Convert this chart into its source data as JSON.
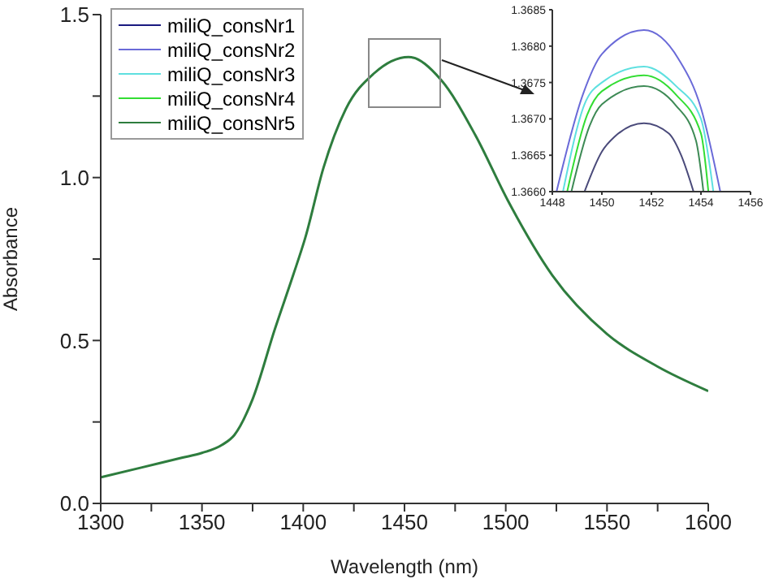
{
  "chart_data": [
    {
      "type": "line",
      "xlabel": "Wavelength (nm)",
      "ylabel": "Absorbance",
      "legend": "top left",
      "grid": false,
      "xlim": [
        1300,
        1600
      ],
      "xticks": [
        1300,
        {
          "value": 1325,
          "label": null
        },
        1350,
        {
          "value": 1375,
          "label": null
        },
        1400,
        {
          "value": 1425,
          "label": null
        },
        1450,
        {
          "value": 1475,
          "label": null
        },
        1500,
        {
          "value": 1525,
          "label": null
        },
        1550,
        {
          "value": 1575,
          "label": null
        },
        1600
      ],
      "ylim": [
        0,
        1.5
      ],
      "yticks": [
        {
          "value": 0,
          "label": "0.0"
        },
        {
          "value": 0.25,
          "label": null
        },
        {
          "value": 0.5,
          "label": "0.5"
        },
        {
          "value": 0.75,
          "label": null
        },
        {
          "value": 1,
          "label": "1.0"
        },
        {
          "value": 1.25,
          "label": null
        },
        {
          "value": 1.5,
          "label": "1.5"
        }
      ],
      "x": [
        1300,
        1320,
        1340,
        1350,
        1360,
        1366,
        1375,
        1386,
        1395,
        1401,
        1410,
        1421,
        1435,
        1452,
        1468,
        1485,
        1501,
        1523,
        1550,
        1575,
        1600
      ],
      "series": [
        {
          "name": "miliQ_consNr1",
          "color": "#1a1a80",
          "values": [
            null,
            null,
            null,
            null,
            null,
            null,
            null,
            null,
            null,
            null,
            null,
            null,
            null,
            null,
            null,
            null,
            null,
            null,
            null,
            null,
            null
          ]
        },
        {
          "name": "miliQ_consNr2",
          "color": "#6a6ad8",
          "values": [
            null,
            null,
            null,
            null,
            null,
            null,
            null,
            null,
            null,
            null,
            null,
            null,
            null,
            null,
            null,
            null,
            null,
            null,
            null,
            null,
            null
          ]
        },
        {
          "name": "miliQ_consNr3",
          "color": "#5ee0e0",
          "values": [
            null,
            null,
            null,
            null,
            null,
            null,
            null,
            null,
            null,
            null,
            null,
            null,
            null,
            null,
            null,
            null,
            null,
            null,
            null,
            null,
            null
          ]
        },
        {
          "name": "miliQ_consNr4",
          "color": "#33dd33",
          "values": [
            null,
            null,
            null,
            null,
            null,
            null,
            null,
            null,
            null,
            null,
            null,
            null,
            null,
            null,
            null,
            null,
            null,
            null,
            null,
            null,
            null
          ]
        },
        {
          "name": "miliQ_consNr5",
          "color": "#2e7d3e",
          "values": [
            0.08,
            0.11,
            0.14,
            0.155,
            0.18,
            0.21,
            0.32,
            0.535,
            0.7,
            0.815,
            1.03,
            1.21,
            1.32,
            1.37,
            1.3,
            1.13,
            0.93,
            0.7,
            0.52,
            0.42,
            0.345
          ]
        }
      ]
    },
    {
      "type": "line",
      "grid": false,
      "legend": false,
      "xlim": [
        1448,
        1456
      ],
      "xticks": [
        1448,
        1450,
        1452,
        1454,
        1456
      ],
      "ylim": [
        1.366,
        1.3685
      ],
      "yticks": [
        {
          "value": 1.366,
          "label": "1.3660"
        },
        1.3665,
        {
          "value": 1.367,
          "label": "1.3670"
        },
        1.3675,
        {
          "value": 1.368,
          "label": "1.3680"
        },
        1.3685
      ],
      "series": [
        {
          "color": "#4a4a7a",
          "x": [
            1449.3,
            1450,
            1450.5,
            1451.7,
            1452.7,
            1453.2,
            1453.7
          ],
          "values": [
            1.366,
            1.36655,
            1.36675,
            1.36694,
            1.3668,
            1.3665,
            1.366
          ]
        },
        {
          "color": "#6a6ad8",
          "x": [
            1448.17,
            1449.24,
            1450,
            1451.7,
            1453.1,
            1454,
            1454.78
          ],
          "values": [
            1.366,
            1.36734,
            1.36789,
            1.36822,
            1.36782,
            1.36715,
            1.366
          ]
        },
        {
          "color": "#5ee0e0",
          "x": [
            1448.43,
            1449.3,
            1450,
            1451.7,
            1453,
            1454,
            1454.5
          ],
          "values": [
            1.366,
            1.3672,
            1.3675,
            1.36772,
            1.36745,
            1.367,
            1.366
          ]
        },
        {
          "color": "#33dd33",
          "x": [
            1448.6,
            1449.4,
            1450,
            1451.7,
            1453,
            1454,
            1454.3
          ],
          "values": [
            1.366,
            1.36705,
            1.36738,
            1.3676,
            1.36733,
            1.3668,
            1.366
          ]
        },
        {
          "color": "#3d8a55",
          "x": [
            1448.77,
            1449.5,
            1450,
            1451.7,
            1453,
            1453.8,
            1454.1
          ],
          "values": [
            1.366,
            1.3669,
            1.3672,
            1.36745,
            1.36718,
            1.3667,
            1.366
          ]
        }
      ]
    }
  ]
}
